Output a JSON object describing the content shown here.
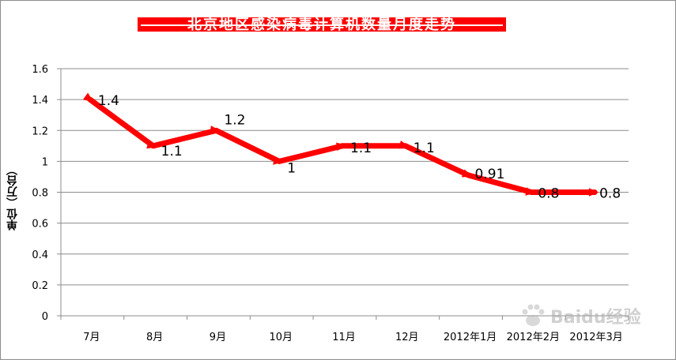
{
  "chart_data": {
    "type": "line",
    "title": "北京地区感染病毒计算机数量月度走势",
    "ylabel": "单位（万台）",
    "xlabel": "",
    "categories": [
      "7月",
      "8月",
      "9月",
      "10月",
      "11月",
      "12月",
      "2012年1月",
      "2012年2月",
      "2012年3月"
    ],
    "series": [
      {
        "name": "",
        "values": [
          1.4,
          1.1,
          1.2,
          1.0,
          1.1,
          1.1,
          0.91,
          0.8,
          0.8
        ],
        "data_labels": [
          "1.4",
          "1.1",
          "1.2",
          "1",
          "1.1",
          "1.1",
          "0.91",
          "0.8",
          "0.8"
        ]
      }
    ],
    "ylim": [
      0,
      1.6
    ],
    "yticks": [
      "0",
      "0.2",
      "0.4",
      "0.6",
      "0.8",
      "1",
      "1.2",
      "1.4",
      "1.6"
    ],
    "grid": true,
    "legend": "none",
    "line_color": "#ff0000",
    "title_bg_color": "#ff0000"
  },
  "watermark": {
    "text": "Baidu经验",
    "icon": "baidu-paw-icon"
  }
}
